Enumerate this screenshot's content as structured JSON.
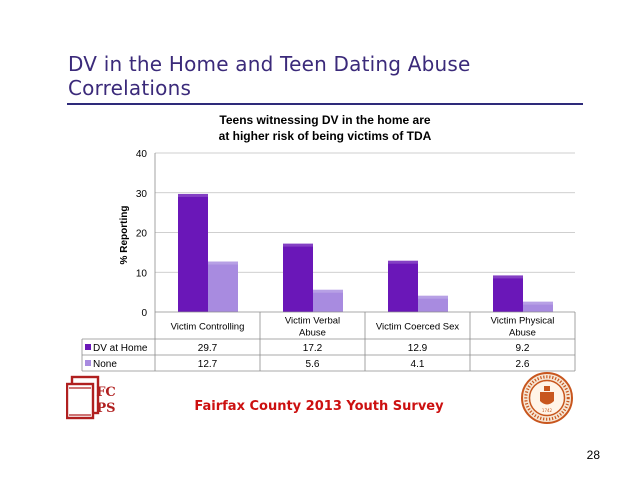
{
  "slide": {
    "title": "DV in the Home and Teen Dating Abuse Correlations",
    "footer_text": "Fairfax County 2013 Youth Survey",
    "page_number": "28",
    "logo_text": "FCPS",
    "seal_text": "COUNTY OF FAIRFAX VIRGINIA 1742",
    "colors": {
      "title": "#3b2a7a",
      "rule": "#2e2a7a",
      "footer": "#cc1010",
      "logo": "#b02020",
      "seal": "#c8561e"
    }
  },
  "chart_data": {
    "type": "bar",
    "title": "Teens witnessing DV in the home are at higher risk of being victims of TDA",
    "title_lines": [
      "Teens witnessing DV in the home are",
      "at higher risk of being victims of TDA"
    ],
    "ylabel": "% Reporting",
    "xlabel": "",
    "ylim": [
      0,
      40
    ],
    "yticks": [
      0,
      10,
      20,
      30,
      40
    ],
    "grid": true,
    "categories": [
      "Victim Controlling",
      "Victim Verbal Abuse",
      "Victim Coerced Sex",
      "Victim Physical Abuse"
    ],
    "category_lines": [
      [
        "Victim Controlling"
      ],
      [
        "Victim Verbal",
        "Abuse"
      ],
      [
        "Victim Coerced Sex"
      ],
      [
        "Victim Physical",
        "Abuse"
      ]
    ],
    "series": [
      {
        "name": "DV at Home",
        "values": [
          29.7,
          17.2,
          12.9,
          9.2
        ],
        "color": "#6a17b8"
      },
      {
        "name": "None",
        "values": [
          12.7,
          5.6,
          4.1,
          2.6
        ],
        "color": "#a88be0"
      }
    ],
    "legend": "data-table",
    "value_labels": [
      [
        "29.7",
        "17.2",
        "12.9",
        "9.2"
      ],
      [
        "12.7",
        "5.6",
        "4.1",
        "2.6"
      ]
    ]
  }
}
